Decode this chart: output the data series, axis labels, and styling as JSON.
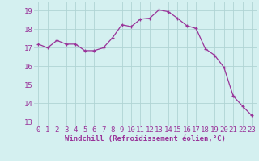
{
  "x": [
    0,
    1,
    2,
    3,
    4,
    5,
    6,
    7,
    8,
    9,
    10,
    11,
    12,
    13,
    14,
    15,
    16,
    17,
    18,
    19,
    20,
    21,
    22,
    23
  ],
  "y": [
    17.2,
    17.0,
    17.4,
    17.2,
    17.2,
    16.85,
    16.85,
    17.0,
    17.55,
    18.25,
    18.15,
    18.55,
    18.6,
    19.05,
    18.95,
    18.6,
    18.2,
    18.05,
    16.95,
    16.6,
    15.95,
    14.4,
    13.85,
    13.35
  ],
  "line_color": "#993399",
  "marker": "+",
  "marker_size": 3,
  "bg_color": "#d4f0f0",
  "grid_color": "#b0d4d4",
  "xlabel": "Windchill (Refroidissement éolien,°C)",
  "xlabel_color": "#993399",
  "tick_color": "#993399",
  "ylim": [
    12.8,
    19.5
  ],
  "xlim": [
    -0.5,
    23.5
  ],
  "yticks": [
    13,
    14,
    15,
    16,
    17,
    18,
    19
  ],
  "xticks": [
    0,
    1,
    2,
    3,
    4,
    5,
    6,
    7,
    8,
    9,
    10,
    11,
    12,
    13,
    14,
    15,
    16,
    17,
    18,
    19,
    20,
    21,
    22,
    23
  ],
  "tick_fontsize": 6.5,
  "xlabel_fontsize": 6.5
}
